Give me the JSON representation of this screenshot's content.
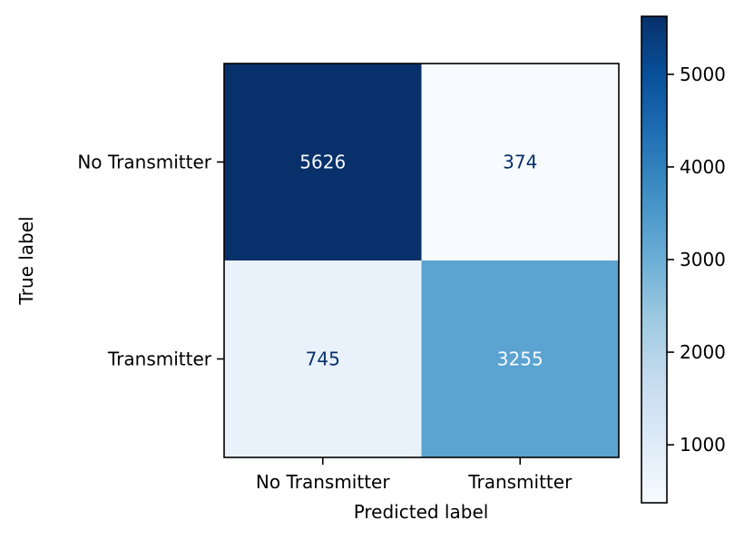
{
  "chart_data": {
    "type": "heatmap",
    "title": "",
    "xlabel": "Predicted label",
    "ylabel": "True label",
    "x_categories": [
      "No Transmitter",
      "Transmitter"
    ],
    "y_categories": [
      "No Transmitter",
      "Transmitter"
    ],
    "matrix": [
      [
        5626,
        374
      ],
      [
        745,
        3255
      ]
    ],
    "cell_labels": [
      [
        "5626",
        "374"
      ],
      [
        "745",
        "3255"
      ]
    ],
    "colormap": "Blues",
    "colorbar": {
      "range": [
        374,
        5626
      ],
      "ticks": [
        1000,
        2000,
        3000,
        4000,
        5000
      ],
      "tick_labels": [
        "1000",
        "2000",
        "3000",
        "4000",
        "5000"
      ]
    },
    "grid": false
  }
}
